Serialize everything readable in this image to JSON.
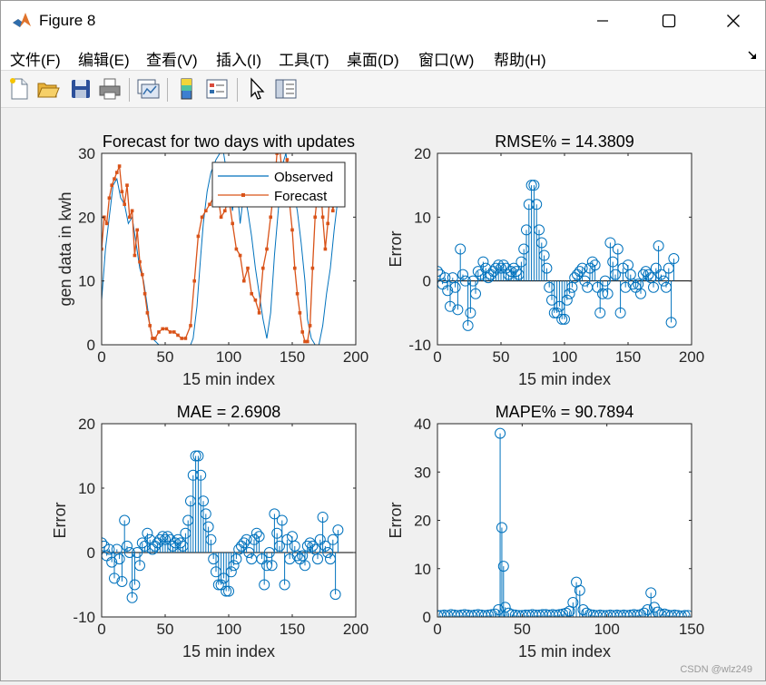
{
  "window": {
    "title": "Figure 8",
    "controls": {
      "minimize": "—",
      "maximize": "☐",
      "close": "✕"
    }
  },
  "menu": {
    "items": [
      "文件(F)",
      "编辑(E)",
      "查看(V)",
      "插入(I)",
      "工具(T)",
      "桌面(D)",
      "窗口(W)",
      "帮助(H)"
    ],
    "overflow_icon": "arrow-icon"
  },
  "toolbar": {
    "buttons": [
      "new-figure-icon",
      "open-icon",
      "save-icon",
      "print-icon",
      "link-plot-icon",
      "colorbar-icon",
      "legend-icon",
      "pointer-icon",
      "property-inspector-icon"
    ]
  },
  "colors": {
    "series_blue": "#0072bd",
    "series_orange": "#d95319"
  },
  "watermark": "CSDN @wlz249",
  "chart_data": [
    {
      "type": "line",
      "title": "Forecast for two days with updates",
      "xlabel": "15 min index",
      "ylabel": "gen data in kwh",
      "xlim": [
        0,
        200
      ],
      "ylim": [
        0,
        30
      ],
      "xticks": [
        "0",
        "50",
        "100",
        "150",
        "200"
      ],
      "yticks": [
        "0",
        "10",
        "20",
        "30"
      ],
      "legend": {
        "position": "top-right",
        "entries": [
          "Observed",
          "Forecast"
        ]
      },
      "series": [
        {
          "name": "Observed",
          "x": [
            0,
            3,
            6,
            9,
            12,
            15,
            18,
            21,
            24,
            27,
            30,
            33,
            36,
            38,
            40,
            45,
            50,
            55,
            60,
            65,
            70,
            72,
            75,
            78,
            80,
            83,
            86,
            90,
            93,
            96,
            100,
            103,
            106,
            109,
            112,
            115,
            118,
            121,
            124,
            127,
            130,
            133,
            136,
            139,
            142,
            145,
            148,
            151,
            154,
            157,
            160,
            162,
            165,
            168,
            171,
            174,
            177,
            180,
            183,
            186
          ],
          "y": [
            7,
            15,
            20,
            25,
            26,
            23,
            22,
            19,
            20,
            16,
            12,
            10,
            6,
            3,
            1,
            0,
            0,
            0,
            0,
            0,
            0,
            1,
            6,
            14,
            19,
            24,
            27,
            29,
            30,
            30,
            25,
            21,
            26,
            19,
            24,
            21,
            17,
            12,
            8,
            4,
            1,
            5,
            14,
            21,
            28,
            30,
            26,
            24,
            21,
            16,
            10,
            4,
            1,
            0,
            0,
            3,
            8,
            12,
            18,
            23
          ]
        },
        {
          "name": "Forecast",
          "x": [
            0,
            2,
            4,
            6,
            8,
            10,
            12,
            14,
            16,
            18,
            20,
            22,
            24,
            26,
            28,
            30,
            32,
            34,
            36,
            38,
            40,
            42,
            45,
            48,
            51,
            54,
            57,
            60,
            63,
            66,
            70,
            73,
            76,
            79,
            82,
            85,
            88,
            91,
            94,
            97,
            100,
            103,
            106,
            109,
            112,
            115,
            118,
            121,
            124,
            127,
            130,
            133,
            136,
            138,
            140,
            142,
            144,
            146,
            148,
            150,
            152,
            154,
            156,
            158,
            160,
            162,
            164,
            166,
            168,
            170,
            172,
            174,
            176,
            178,
            180,
            182,
            184,
            186
          ],
          "y": [
            15,
            20,
            19,
            23,
            25,
            26,
            27,
            28,
            24,
            22,
            25,
            20,
            21,
            14,
            18,
            13,
            11,
            8,
            5,
            3,
            1,
            1,
            2,
            2.5,
            2.5,
            2,
            2,
            1.5,
            1,
            1,
            3,
            10,
            17,
            20,
            21,
            22,
            23,
            24,
            20,
            21,
            23,
            19,
            15,
            14,
            10,
            12,
            8,
            7,
            5,
            12,
            15,
            20,
            25,
            30,
            31,
            27,
            25,
            29,
            22,
            18,
            12,
            8,
            5,
            2,
            0.5,
            0.5,
            3,
            12,
            20,
            24,
            26,
            20,
            15,
            19,
            25,
            21,
            24,
            25
          ]
        }
      ]
    },
    {
      "type": "scatter",
      "style": "stem",
      "title": "RMSE% = 14.3809",
      "xlabel": "15 min index",
      "ylabel": "Error",
      "xlim": [
        0,
        200
      ],
      "ylim": [
        -10,
        20
      ],
      "xticks": [
        "0",
        "50",
        "100",
        "150",
        "200"
      ],
      "yticks": [
        "-10",
        "0",
        "10",
        "20"
      ],
      "series": [
        {
          "x": [
            0,
            2,
            4,
            6,
            8,
            10,
            12,
            14,
            16,
            18,
            20,
            22,
            24,
            26,
            28,
            30,
            32,
            34,
            36,
            38,
            40,
            42,
            44,
            46,
            48,
            50,
            52,
            54,
            56,
            58,
            60,
            62,
            64,
            66,
            68,
            70,
            72,
            74,
            76,
            78,
            80,
            82,
            84,
            86,
            88,
            90,
            92,
            94,
            96,
            98,
            100,
            102,
            104,
            106,
            108,
            110,
            112,
            114,
            116,
            118,
            120,
            122,
            124,
            126,
            128,
            130,
            132,
            134,
            136,
            138,
            140,
            142,
            144,
            146,
            148,
            150,
            152,
            154,
            156,
            158,
            160,
            162,
            164,
            166,
            168,
            170,
            172,
            174,
            176,
            178,
            180,
            182,
            184,
            186
          ],
          "y": [
            1.5,
            1,
            -0.5,
            0.5,
            -1.5,
            -4,
            0.5,
            -1,
            -4.5,
            5,
            1,
            0,
            -7,
            -5,
            0,
            -2,
            1.5,
            1,
            3,
            2,
            0.5,
            1,
            1.5,
            2,
            2.5,
            2,
            2.5,
            2,
            1,
            1.5,
            2,
            1.5,
            1,
            3,
            5,
            8,
            12,
            15,
            15,
            12,
            8,
            6,
            4,
            2,
            -1,
            -3,
            -5,
            -5,
            -4,
            -6,
            -6,
            -3,
            -2,
            -1,
            0.5,
            1,
            1.5,
            2,
            0,
            -1,
            2,
            3,
            2.5,
            -1,
            -5,
            -2,
            0,
            -2,
            6,
            3,
            1,
            5,
            -5,
            2,
            -1,
            2.5,
            1,
            -0.5,
            -1,
            -0.5,
            -2,
            1,
            1.5,
            1,
            0.5,
            -1,
            2,
            5.5,
            1,
            0,
            -1,
            2,
            -6.5,
            3.5
          ]
        }
      ]
    },
    {
      "type": "scatter",
      "style": "stem",
      "title": "MAE = 2.6908",
      "xlabel": "15 min index",
      "ylabel": "Error",
      "xlim": [
        0,
        200
      ],
      "ylim": [
        -10,
        20
      ],
      "xticks": [
        "0",
        "50",
        "100",
        "150",
        "200"
      ],
      "yticks": [
        "-10",
        "0",
        "10",
        "20"
      ],
      "series": [
        {
          "x": [
            0,
            2,
            4,
            6,
            8,
            10,
            12,
            14,
            16,
            18,
            20,
            22,
            24,
            26,
            28,
            30,
            32,
            34,
            36,
            38,
            40,
            42,
            44,
            46,
            48,
            50,
            52,
            54,
            56,
            58,
            60,
            62,
            64,
            66,
            68,
            70,
            72,
            74,
            76,
            78,
            80,
            82,
            84,
            86,
            88,
            90,
            92,
            94,
            96,
            98,
            100,
            102,
            104,
            106,
            108,
            110,
            112,
            114,
            116,
            118,
            120,
            122,
            124,
            126,
            128,
            130,
            132,
            134,
            136,
            138,
            140,
            142,
            144,
            146,
            148,
            150,
            152,
            154,
            156,
            158,
            160,
            162,
            164,
            166,
            168,
            170,
            172,
            174,
            176,
            178,
            180,
            182,
            184,
            186
          ],
          "y": [
            1.5,
            1,
            -0.5,
            0.5,
            -1.5,
            -4,
            0.5,
            -1,
            -4.5,
            5,
            1,
            0,
            -7,
            -5,
            0,
            -2,
            1.5,
            1,
            3,
            2,
            0.5,
            1,
            1.5,
            2,
            2.5,
            2,
            2.5,
            2,
            1,
            1.5,
            2,
            1.5,
            1,
            3,
            5,
            8,
            12,
            15,
            15,
            12,
            8,
            6,
            4,
            2,
            -1,
            -3,
            -5,
            -5,
            -4,
            -6,
            -6,
            -3,
            -2,
            -1,
            0.5,
            1,
            1.5,
            2,
            0,
            -1,
            2,
            3,
            2.5,
            -1,
            -5,
            -2,
            0,
            -2,
            6,
            3,
            1,
            5,
            -5,
            2,
            -1,
            2.5,
            1,
            -0.5,
            -1,
            -0.5,
            -2,
            1,
            1.5,
            1,
            0.5,
            -1,
            2,
            5.5,
            1,
            0,
            -1,
            2,
            -6.5,
            3.5
          ]
        }
      ]
    },
    {
      "type": "scatter",
      "style": "stem",
      "title": "MAPE% = 90.7894",
      "xlabel": "15 min index",
      "ylabel": "Error",
      "xlim": [
        0,
        150
      ],
      "ylim": [
        0,
        40
      ],
      "xticks": [
        "0",
        "50",
        "100",
        "150"
      ],
      "yticks": [
        "0",
        "10",
        "20",
        "30",
        "40"
      ],
      "series": [
        {
          "x": [
            0,
            2,
            4,
            6,
            8,
            10,
            12,
            14,
            16,
            18,
            20,
            22,
            24,
            26,
            28,
            30,
            32,
            34,
            36,
            37,
            38,
            39,
            40,
            42,
            44,
            46,
            48,
            50,
            52,
            54,
            56,
            58,
            60,
            62,
            64,
            66,
            68,
            70,
            72,
            74,
            76,
            78,
            80,
            82,
            84,
            86,
            88,
            90,
            92,
            94,
            96,
            98,
            100,
            102,
            104,
            106,
            108,
            110,
            112,
            114,
            116,
            118,
            120,
            122,
            124,
            126,
            128,
            130,
            132,
            134,
            136,
            138,
            140,
            142,
            144,
            146,
            148
          ],
          "y": [
            0.3,
            0.3,
            0.4,
            0.3,
            0.5,
            0.4,
            0.3,
            0.4,
            0.5,
            0.4,
            0.3,
            0.4,
            0.5,
            0.4,
            0.3,
            0.4,
            0.5,
            0.6,
            1.5,
            38,
            18.5,
            10.5,
            2,
            0.8,
            0.5,
            0.4,
            0.3,
            0.3,
            0.4,
            0.4,
            0.5,
            0.4,
            0.4,
            0.5,
            0.5,
            0.4,
            0.5,
            0.4,
            0.5,
            0.6,
            0.8,
            1.2,
            3,
            7.2,
            5.5,
            1.5,
            0.8,
            0.5,
            0.4,
            0.3,
            0.4,
            0.3,
            0.3,
            0.4,
            0.3,
            0.4,
            0.3,
            0.4,
            0.3,
            0.4,
            0.5,
            0.4,
            0.5,
            0.8,
            1.5,
            5,
            2,
            1,
            0.5,
            0.6,
            0.4,
            0.3,
            0.4,
            0.3,
            0.2,
            0.3,
            0.3
          ]
        }
      ]
    }
  ]
}
